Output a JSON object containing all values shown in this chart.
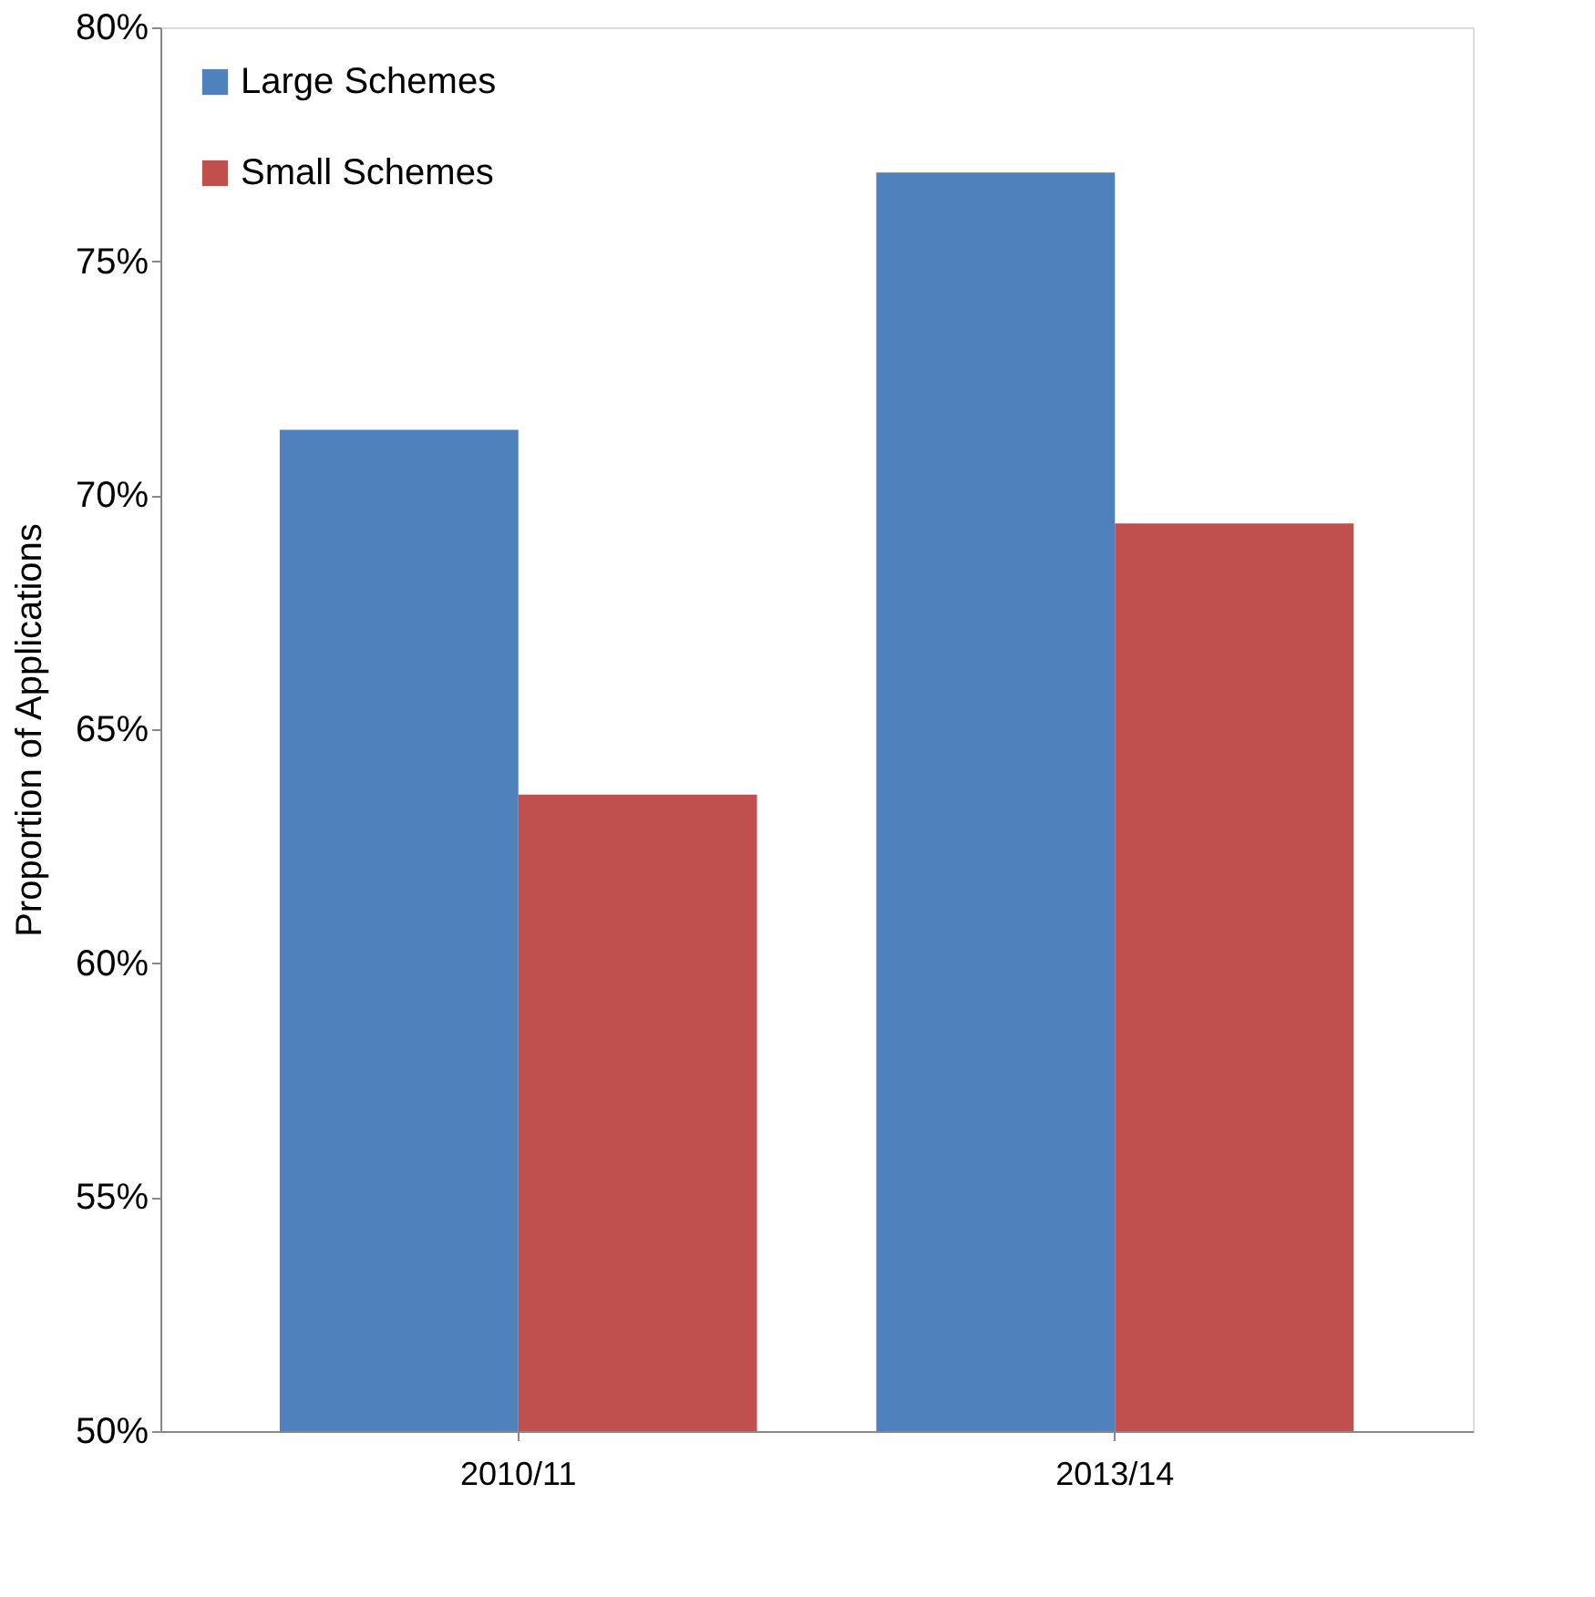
{
  "chart_data": {
    "type": "bar",
    "ylabel": "Proportion of Applications",
    "categories": [
      "2010/11",
      "2013/14"
    ],
    "series": [
      {
        "name": "Large Schemes",
        "color": "#4f81bd",
        "values": [
          71.4,
          76.9
        ]
      },
      {
        "name": "Small Schemes",
        "color": "#c0504d",
        "values": [
          63.6,
          69.4
        ]
      }
    ],
    "ylim": [
      50,
      80
    ],
    "yticks": [
      {
        "value": 50,
        "label": "50%"
      },
      {
        "value": 55,
        "label": "55%"
      },
      {
        "value": 60,
        "label": "60%"
      },
      {
        "value": 65,
        "label": "65%"
      },
      {
        "value": 70,
        "label": "70%"
      },
      {
        "value": 75,
        "label": "75%"
      },
      {
        "value": 80,
        "label": "80%"
      }
    ],
    "legend": "top left",
    "grid": false
  }
}
